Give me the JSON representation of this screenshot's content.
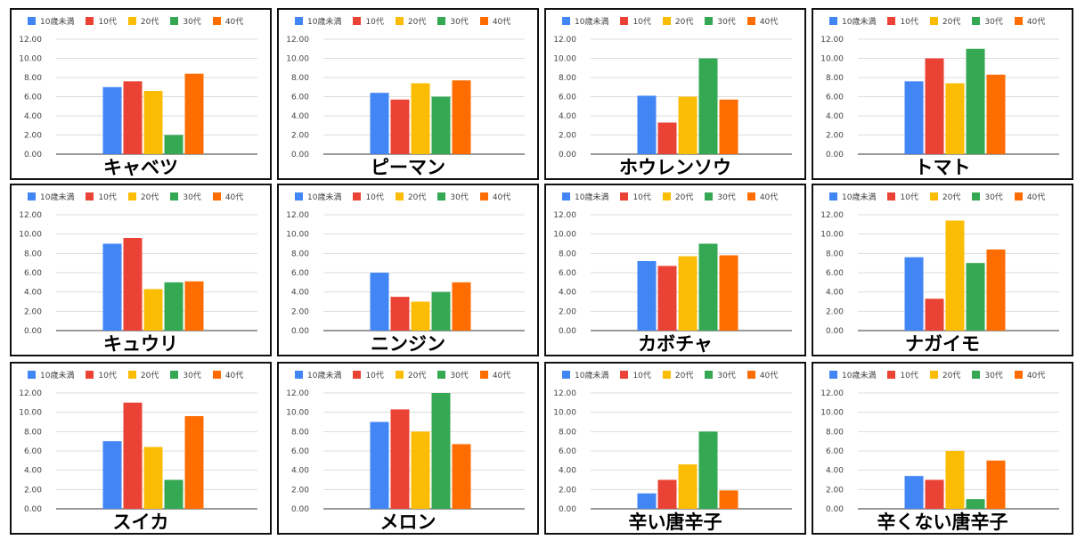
{
  "colors": [
    "#4285F4",
    "#EA4335",
    "#FBBC04",
    "#34A853",
    "#FF6D01"
  ],
  "chart_data": [
    {
      "type": "bar",
      "title": "キャベツ",
      "categories": [
        "10歳未満",
        "10代",
        "20代",
        "30代",
        "40代"
      ],
      "values": [
        7.0,
        7.6,
        6.6,
        2.0,
        8.4
      ],
      "ylim": [
        0,
        12
      ],
      "yticks": [
        "0.00",
        "2.00",
        "4.00",
        "6.00",
        "8.00",
        "10.00",
        "12.00"
      ],
      "legend": "top",
      "grid": true
    },
    {
      "type": "bar",
      "title": "ピーマン",
      "categories": [
        "10歳未満",
        "10代",
        "20代",
        "30代",
        "40代"
      ],
      "values": [
        6.4,
        5.7,
        7.4,
        6.0,
        7.7
      ],
      "ylim": [
        0,
        12
      ],
      "yticks": [
        "0.00",
        "2.00",
        "4.00",
        "6.00",
        "8.00",
        "10.00",
        "12.00"
      ],
      "legend": "top",
      "grid": true
    },
    {
      "type": "bar",
      "title": "ホウレンソウ",
      "categories": [
        "10歳未満",
        "10代",
        "20代",
        "30代",
        "40代"
      ],
      "values": [
        6.1,
        3.3,
        6.0,
        10.0,
        5.7
      ],
      "ylim": [
        0,
        12
      ],
      "yticks": [
        "0.00",
        "2.00",
        "4.00",
        "6.00",
        "8.00",
        "10.00",
        "12.00"
      ],
      "legend": "top",
      "grid": true
    },
    {
      "type": "bar",
      "title": "トマト",
      "categories": [
        "10歳未満",
        "10代",
        "20代",
        "30代",
        "40代"
      ],
      "values": [
        7.6,
        10.0,
        7.4,
        11.0,
        8.3
      ],
      "ylim": [
        0,
        12
      ],
      "yticks": [
        "0.00",
        "2.00",
        "4.00",
        "6.00",
        "8.00",
        "10.00",
        "12.00"
      ],
      "legend": "top",
      "grid": true
    },
    {
      "type": "bar",
      "title": "キュウリ",
      "categories": [
        "10歳未満",
        "10代",
        "20代",
        "30代",
        "40代"
      ],
      "values": [
        9.0,
        9.6,
        4.3,
        5.0,
        5.1
      ],
      "ylim": [
        0,
        12
      ],
      "yticks": [
        "0.00",
        "2.00",
        "4.00",
        "6.00",
        "8.00",
        "10.00",
        "12.00"
      ],
      "legend": "top",
      "grid": true
    },
    {
      "type": "bar",
      "title": "ニンジン",
      "categories": [
        "10歳未満",
        "10代",
        "20代",
        "30代",
        "40代"
      ],
      "values": [
        6.0,
        3.5,
        3.0,
        4.0,
        5.0
      ],
      "ylim": [
        0,
        12
      ],
      "yticks": [
        "0.00",
        "2.00",
        "4.00",
        "6.00",
        "8.00",
        "10.00",
        "12.00"
      ],
      "legend": "top",
      "grid": true
    },
    {
      "type": "bar",
      "title": "カボチャ",
      "categories": [
        "10歳未満",
        "10代",
        "20代",
        "30代",
        "40代"
      ],
      "values": [
        7.2,
        6.7,
        7.7,
        9.0,
        7.8
      ],
      "ylim": [
        0,
        12
      ],
      "yticks": [
        "0.00",
        "2.00",
        "4.00",
        "6.00",
        "8.00",
        "10.00",
        "12.00"
      ],
      "legend": "top",
      "grid": true
    },
    {
      "type": "bar",
      "title": "ナガイモ",
      "categories": [
        "10歳未満",
        "10代",
        "20代",
        "30代",
        "40代"
      ],
      "values": [
        7.6,
        3.3,
        11.4,
        7.0,
        8.4
      ],
      "ylim": [
        0,
        12
      ],
      "yticks": [
        "0.00",
        "2.00",
        "4.00",
        "6.00",
        "8.00",
        "10.00",
        "12.00"
      ],
      "legend": "top",
      "grid": true
    },
    {
      "type": "bar",
      "title": "スイカ",
      "categories": [
        "10歳未満",
        "10代",
        "20代",
        "30代",
        "40代"
      ],
      "values": [
        7.0,
        11.0,
        6.4,
        3.0,
        9.6
      ],
      "ylim": [
        0,
        12
      ],
      "yticks": [
        "0.00",
        "2.00",
        "4.00",
        "6.00",
        "8.00",
        "10.00",
        "12.00"
      ],
      "legend": "top",
      "grid": true
    },
    {
      "type": "bar",
      "title": "メロン",
      "categories": [
        "10歳未満",
        "10代",
        "20代",
        "30代",
        "40代"
      ],
      "values": [
        9.0,
        10.3,
        8.0,
        12.0,
        6.7
      ],
      "ylim": [
        0,
        12
      ],
      "yticks": [
        "0.00",
        "2.00",
        "4.00",
        "6.00",
        "8.00",
        "10.00",
        "12.00"
      ],
      "legend": "top",
      "grid": true
    },
    {
      "type": "bar",
      "title": "辛い唐辛子",
      "categories": [
        "10歳未満",
        "10代",
        "20代",
        "30代",
        "40代"
      ],
      "values": [
        1.6,
        3.0,
        4.6,
        8.0,
        1.9
      ],
      "ylim": [
        0,
        12
      ],
      "yticks": [
        "0.00",
        "2.00",
        "4.00",
        "6.00",
        "8.00",
        "10.00",
        "12.00"
      ],
      "legend": "top",
      "grid": true
    },
    {
      "type": "bar",
      "title": "辛くない唐辛子",
      "categories": [
        "10歳未満",
        "10代",
        "20代",
        "30代",
        "40代"
      ],
      "values": [
        3.4,
        3.0,
        6.0,
        1.0,
        5.0
      ],
      "ylim": [
        0,
        12
      ],
      "yticks": [
        "0.00",
        "2.00",
        "4.00",
        "6.00",
        "8.00",
        "10.00",
        "12.00"
      ],
      "legend": "top",
      "grid": true
    }
  ]
}
